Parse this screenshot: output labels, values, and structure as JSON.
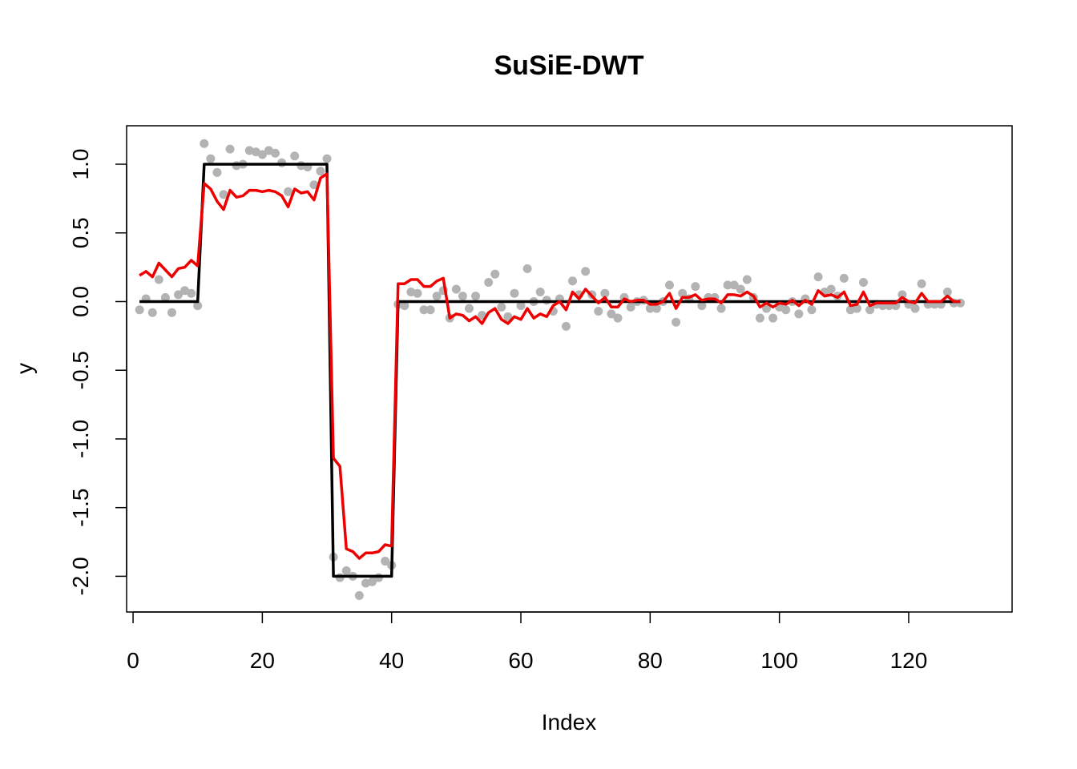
{
  "chart_data": {
    "type": "scatter",
    "title": "SuSiE-DWT",
    "xlabel": "Index",
    "ylabel": "y",
    "xlim": [
      -1,
      136
    ],
    "ylim": [
      -2.26,
      1.28
    ],
    "grid": false,
    "legend": "none",
    "x_ticks": [
      0,
      20,
      40,
      60,
      80,
      100,
      120
    ],
    "x_tick_labels": [
      "0",
      "20",
      "40",
      "60",
      "80",
      "100",
      "120"
    ],
    "y_ticks": [
      -2.0,
      -1.5,
      -1.0,
      -0.5,
      0.0,
      0.5,
      1.0
    ],
    "y_tick_labels": [
      "-2.0",
      "-1.5",
      "-1.0",
      "-0.5",
      "0.0",
      "0.5",
      "1.0"
    ],
    "colors": {
      "points": "#b3b3b3",
      "truth": "#000000",
      "estimate": "#ee0000"
    },
    "observed": [
      -0.06,
      0.02,
      -0.08,
      0.16,
      0.03,
      -0.08,
      0.05,
      0.08,
      0.06,
      -0.03,
      1.15,
      1.04,
      0.94,
      0.78,
      1.11,
      0.99,
      1.0,
      1.1,
      1.09,
      1.07,
      1.1,
      1.08,
      1.01,
      0.8,
      1.06,
      0.99,
      0.98,
      0.85,
      0.95,
      1.04,
      -1.86,
      -2.01,
      -1.96,
      -2.0,
      -2.14,
      -2.05,
      -2.04,
      -2.01,
      -1.89,
      -1.92,
      -0.02,
      -0.03,
      0.07,
      0.06,
      -0.06,
      -0.06,
      0.04,
      0.08,
      -0.12,
      0.09,
      0.04,
      -0.05,
      0.04,
      -0.1,
      0.14,
      0.2,
      -0.04,
      -0.11,
      0.06,
      -0.03,
      0.24,
      0.0,
      0.07,
      0.01,
      -0.07,
      0.02,
      -0.18,
      0.15,
      0.05,
      0.22,
      0.05,
      -0.07,
      0.06,
      -0.09,
      -0.12,
      0.03,
      -0.04,
      0.0,
      0.01,
      -0.05,
      -0.05,
      0.0,
      0.12,
      -0.15,
      0.06,
      0.02,
      0.11,
      -0.03,
      0.03,
      0.03,
      -0.05,
      0.12,
      0.12,
      0.09,
      0.16,
      0.03,
      -0.12,
      -0.05,
      -0.12,
      -0.04,
      -0.06,
      0.0,
      -0.09,
      0.02,
      -0.06,
      0.18,
      0.07,
      0.09,
      0.04,
      0.17,
      -0.06,
      -0.05,
      0.14,
      -0.06,
      -0.02,
      -0.03,
      -0.03,
      -0.03,
      0.05,
      -0.02,
      -0.05,
      0.13,
      -0.02,
      -0.02,
      -0.02,
      0.07,
      -0.01,
      -0.01
    ],
    "truth": {
      "x": [
        1,
        10,
        11,
        30,
        31,
        40,
        41,
        128
      ],
      "y": [
        0,
        0,
        1,
        1,
        -2,
        -2,
        0,
        0
      ]
    },
    "estimate": [
      0.19,
      0.22,
      0.18,
      0.28,
      0.23,
      0.18,
      0.24,
      0.25,
      0.3,
      0.26,
      0.86,
      0.82,
      0.73,
      0.67,
      0.81,
      0.76,
      0.77,
      0.81,
      0.81,
      0.8,
      0.81,
      0.8,
      0.77,
      0.69,
      0.82,
      0.79,
      0.8,
      0.74,
      0.9,
      0.93,
      -1.14,
      -1.2,
      -1.8,
      -1.82,
      -1.87,
      -1.83,
      -1.83,
      -1.82,
      -1.77,
      -1.78,
      0.13,
      0.13,
      0.16,
      0.16,
      0.11,
      0.11,
      0.15,
      0.17,
      -0.12,
      -0.09,
      -0.1,
      -0.14,
      -0.11,
      -0.16,
      -0.08,
      -0.05,
      -0.13,
      -0.16,
      -0.11,
      -0.13,
      -0.05,
      -0.12,
      -0.09,
      -0.11,
      -0.03,
      0.0,
      -0.06,
      0.07,
      0.02,
      0.09,
      0.04,
      -0.01,
      0.03,
      -0.04,
      -0.04,
      0.02,
      0.0,
      0.01,
      0.01,
      -0.02,
      -0.02,
      0.0,
      0.06,
      -0.05,
      0.03,
      0.03,
      0.05,
      0.01,
      0.02,
      0.02,
      -0.01,
      0.05,
      0.05,
      0.04,
      0.07,
      0.04,
      -0.04,
      -0.01,
      -0.04,
      -0.01,
      -0.02,
      0.01,
      -0.03,
      0.01,
      -0.02,
      0.08,
      0.04,
      0.05,
      0.03,
      0.07,
      -0.03,
      -0.02,
      0.07,
      -0.03,
      -0.01,
      -0.01,
      -0.01,
      -0.01,
      0.03,
      0.0,
      -0.01,
      0.06,
      0.0,
      0.0,
      0.0,
      0.04,
      0.0,
      0.0
    ]
  }
}
